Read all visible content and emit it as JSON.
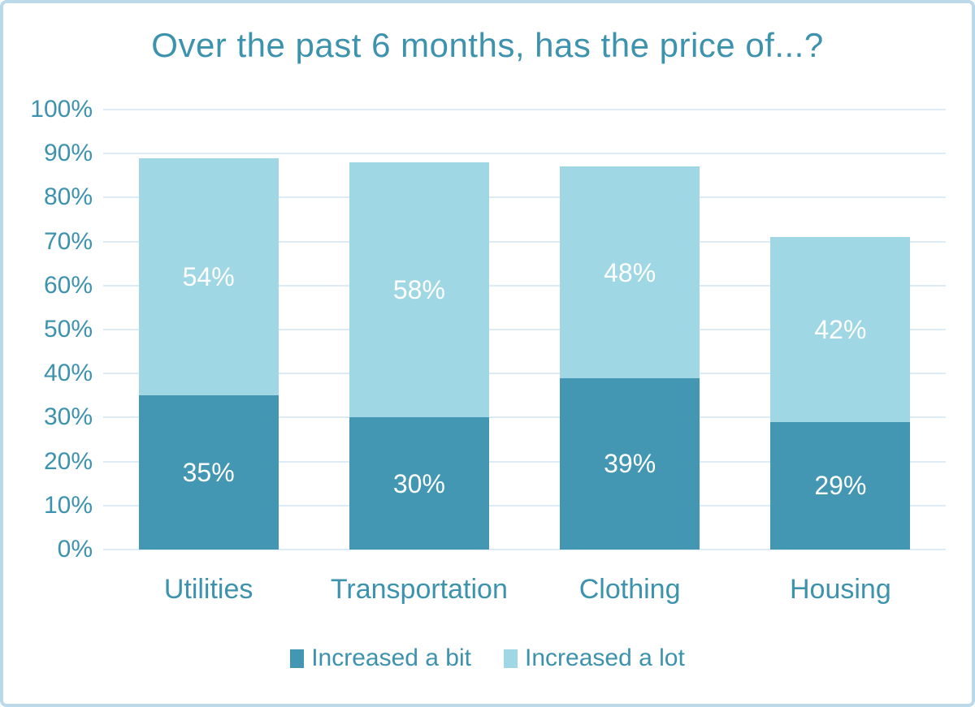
{
  "chart_data": {
    "type": "bar",
    "stacked": true,
    "title": "Over the past 6 months, has the price of...?",
    "categories": [
      "Utilities",
      "Transportation",
      "Clothing",
      "Housing"
    ],
    "series": [
      {
        "name": "Increased a bit",
        "color": "#4397b3",
        "values": [
          35,
          30,
          39,
          29
        ],
        "labels": [
          "35%",
          "30%",
          "39%",
          "29%"
        ]
      },
      {
        "name": "Increased a lot",
        "color": "#a0d7e4",
        "values": [
          54,
          58,
          48,
          42
        ],
        "labels": [
          "54%",
          "58%",
          "48%",
          "42%"
        ]
      }
    ],
    "ylim": [
      0,
      100
    ],
    "ytick_step": 10,
    "ytick_labels": [
      "0%",
      "10%",
      "20%",
      "30%",
      "40%",
      "50%",
      "60%",
      "70%",
      "80%",
      "90%",
      "100%"
    ],
    "grid": true,
    "legend_position": "bottom"
  },
  "style": {
    "text_color": "#3d92ae",
    "grid_color": "#dcebf5",
    "border_color": "#bcd9ea",
    "background": "#ffffff",
    "data_label_color": "#ffffff"
  }
}
